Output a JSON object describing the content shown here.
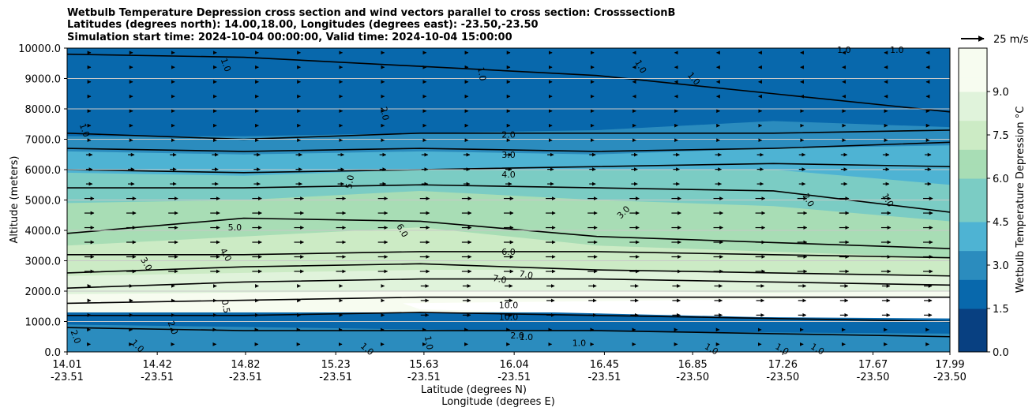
{
  "chart_data": {
    "type": "contour-cross-section",
    "title": "Wetbulb Temperature Depression cross section and wind vectors parallel to cross section: CrosssectionB",
    "subtitle_1": "Latitudes (degrees north): 14.00,18.00, Longitudes (degrees east): -23.50,-23.50",
    "subtitle_2": "Simulation start time: 2024-10-04 00:00:00, Valid time: 2024-10-04 15:00:00",
    "ylabel": "Altitude (meters)",
    "xlabel_lat": "Latitude (degrees N)",
    "xlabel_lon": "Longitude (degrees E)",
    "colorbar_label": "Wetbulb Temperature Depression °C",
    "quiver_key": "25 m/s",
    "ylim": [
      0,
      10000
    ],
    "y_ticks": [
      0,
      1000,
      2000,
      3000,
      4000,
      5000,
      6000,
      7000,
      8000,
      9000,
      10000
    ],
    "y_tick_labels": [
      "0.0",
      "1000.0",
      "2000.0",
      "3000.0",
      "4000.0",
      "5000.0",
      "6000.0",
      "7000.0",
      "8000.0",
      "9000.0",
      "10000.0"
    ],
    "x_ticks": [
      {
        "lat": "14.01",
        "lon": "-23.51",
        "frac": 0.0
      },
      {
        "lat": "14.42",
        "lon": "-23.51",
        "frac": 0.1021
      },
      {
        "lat": "14.82",
        "lon": "-23.51",
        "frac": 0.2021
      },
      {
        "lat": "15.23",
        "lon": "-23.51",
        "frac": 0.3043
      },
      {
        "lat": "15.63",
        "lon": "-23.51",
        "frac": 0.4042
      },
      {
        "lat": "16.04",
        "lon": "-23.51",
        "frac": 0.5064
      },
      {
        "lat": "16.45",
        "lon": "-23.51",
        "frac": 0.6086
      },
      {
        "lat": "16.85",
        "lon": "-23.50",
        "frac": 0.7086
      },
      {
        "lat": "17.26",
        "lon": "-23.50",
        "frac": 0.8107
      },
      {
        "lat": "17.67",
        "lon": "-23.50",
        "frac": 0.9129
      },
      {
        "lat": "17.99",
        "lon": "-23.50",
        "frac": 1.0
      }
    ],
    "colorbar_range": [
      0,
      10.5
    ],
    "colorbar_ticks": [
      0.0,
      1.5,
      3.0,
      4.5,
      6.0,
      7.5,
      9.0
    ],
    "colorbar_tick_labels": [
      "0.0",
      "1.5",
      "3.0",
      "4.5",
      "6.0",
      "7.5",
      "9.0"
    ],
    "colorbar_colors": [
      "#084081",
      "#0868ac",
      "#2b8cbe",
      "#4eb3d3",
      "#7bccc4",
      "#a8ddb5",
      "#ccebc5",
      "#e0f3db",
      "#f7fcf0"
    ],
    "contour_labels": [
      {
        "text": "1.0",
        "x": 0.18,
        "y": 9450,
        "rot": 70
      },
      {
        "text": "1.0",
        "x": 0.47,
        "y": 9150,
        "rot": 80
      },
      {
        "text": "1.0",
        "x": 0.65,
        "y": 9400,
        "rot": 60
      },
      {
        "text": "1.0",
        "x": 0.71,
        "y": 9000,
        "rot": 50
      },
      {
        "text": "1.0",
        "x": 0.88,
        "y": 9950,
        "rot": 0
      },
      {
        "text": "1.0",
        "x": 0.94,
        "y": 9950,
        "rot": 0
      },
      {
        "text": "1.0",
        "x": 0.02,
        "y": 7300,
        "rot": 70
      },
      {
        "text": "2.0",
        "x": 0.36,
        "y": 7850,
        "rot": 80
      },
      {
        "text": "2.0",
        "x": 0.5,
        "y": 7150,
        "rot": 0
      },
      {
        "text": "3.0",
        "x": 0.5,
        "y": 6500,
        "rot": 0
      },
      {
        "text": "4.0",
        "x": 0.5,
        "y": 5850,
        "rot": 0
      },
      {
        "text": "5.0",
        "x": 0.32,
        "y": 5600,
        "rot": -80
      },
      {
        "text": "2.0",
        "x": 0.84,
        "y": 5000,
        "rot": 60
      },
      {
        "text": "1.0",
        "x": 0.93,
        "y": 5000,
        "rot": 60
      },
      {
        "text": "3.0",
        "x": 0.63,
        "y": 4600,
        "rot": -45
      },
      {
        "text": "5.0",
        "x": 0.19,
        "y": 4100,
        "rot": 0
      },
      {
        "text": "6.0",
        "x": 0.38,
        "y": 4000,
        "rot": 60
      },
      {
        "text": "4.0",
        "x": 0.18,
        "y": 3200,
        "rot": 60
      },
      {
        "text": "3.0",
        "x": 0.09,
        "y": 2900,
        "rot": 60
      },
      {
        "text": "6.0",
        "x": 0.5,
        "y": 3300,
        "rot": 0
      },
      {
        "text": "7.0",
        "x": 0.49,
        "y": 2400,
        "rot": 10
      },
      {
        "text": "7.0",
        "x": 0.52,
        "y": 2550,
        "rot": 10
      },
      {
        "text": "10.0",
        "x": 0.5,
        "y": 1550,
        "rot": 0
      },
      {
        "text": "10.0",
        "x": 0.5,
        "y": 1150,
        "rot": 0
      },
      {
        "text": "0.5",
        "x": 0.18,
        "y": 1500,
        "rot": 80
      },
      {
        "text": "2.0",
        "x": 0.12,
        "y": 800,
        "rot": 70
      },
      {
        "text": "1.0",
        "x": 0.08,
        "y": 200,
        "rot": 45
      },
      {
        "text": "2.0",
        "x": 0.01,
        "y": 500,
        "rot": 70
      },
      {
        "text": "1.0",
        "x": 0.34,
        "y": 100,
        "rot": 40
      },
      {
        "text": "1.0",
        "x": 0.41,
        "y": 300,
        "rot": 80
      },
      {
        "text": "2.0",
        "x": 0.51,
        "y": 550,
        "rot": 0
      },
      {
        "text": "1.0",
        "x": 0.52,
        "y": 500,
        "rot": 0
      },
      {
        "text": "1.0",
        "x": 0.58,
        "y": 300,
        "rot": 0
      },
      {
        "text": "1.0",
        "x": 0.73,
        "y": 100,
        "rot": 30
      },
      {
        "text": "1.0",
        "x": 0.81,
        "y": 100,
        "rot": 30
      },
      {
        "text": "1.0",
        "x": 0.85,
        "y": 100,
        "rot": 30
      }
    ]
  }
}
